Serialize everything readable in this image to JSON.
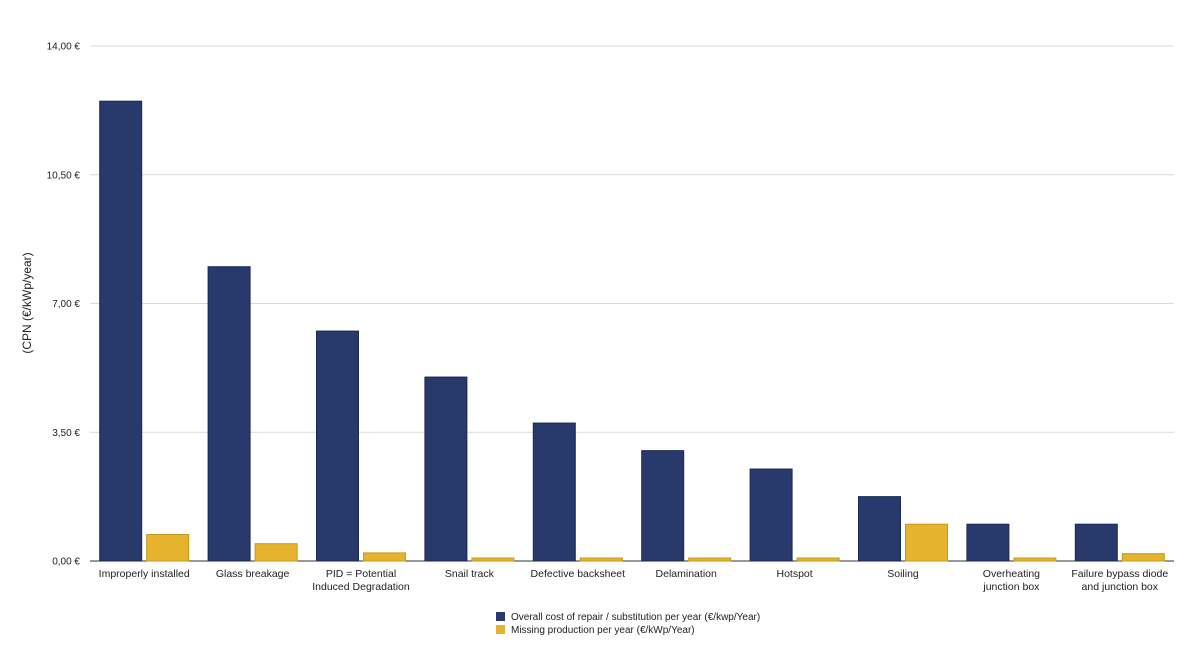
{
  "chart_data": {
    "type": "bar",
    "ylabel": "(CPN (€/kWp/year)",
    "xlabel": "",
    "ylim": [
      0,
      14
    ],
    "yticks": [
      "0,00 €",
      "3,50 €",
      "7,00 €",
      "10,50 €",
      "14,00 €"
    ],
    "ytick_values": [
      0,
      3.5,
      7,
      10.5,
      14
    ],
    "grid": true,
    "legend_position": "bottom-center",
    "categories": [
      [
        "Improperly installed"
      ],
      [
        "Glass breakage"
      ],
      [
        "PID = Potential",
        "Induced Degradation"
      ],
      [
        "Snail track"
      ],
      [
        "Defective backsheet"
      ],
      [
        "Delamination"
      ],
      [
        "Hotspot"
      ],
      [
        "Soiling"
      ],
      [
        "Overheating",
        "junction box"
      ],
      [
        "Failure bypass diode",
        "and junction box"
      ]
    ],
    "series": [
      {
        "name": "Overall cost of repair / substitution per year (€/kwp/Year)",
        "color": "#283a6c",
        "values": [
          12.5,
          8.0,
          6.25,
          5.0,
          3.75,
          3.0,
          2.5,
          1.75,
          1.0,
          1.0
        ]
      },
      {
        "name": "Missing production per year (€/kWp/Year)",
        "color": "#e6b32e",
        "values": [
          0.72,
          0.47,
          0.22,
          0.08,
          0.08,
          0.08,
          0.08,
          1.0,
          0.08,
          0.2
        ]
      }
    ]
  }
}
